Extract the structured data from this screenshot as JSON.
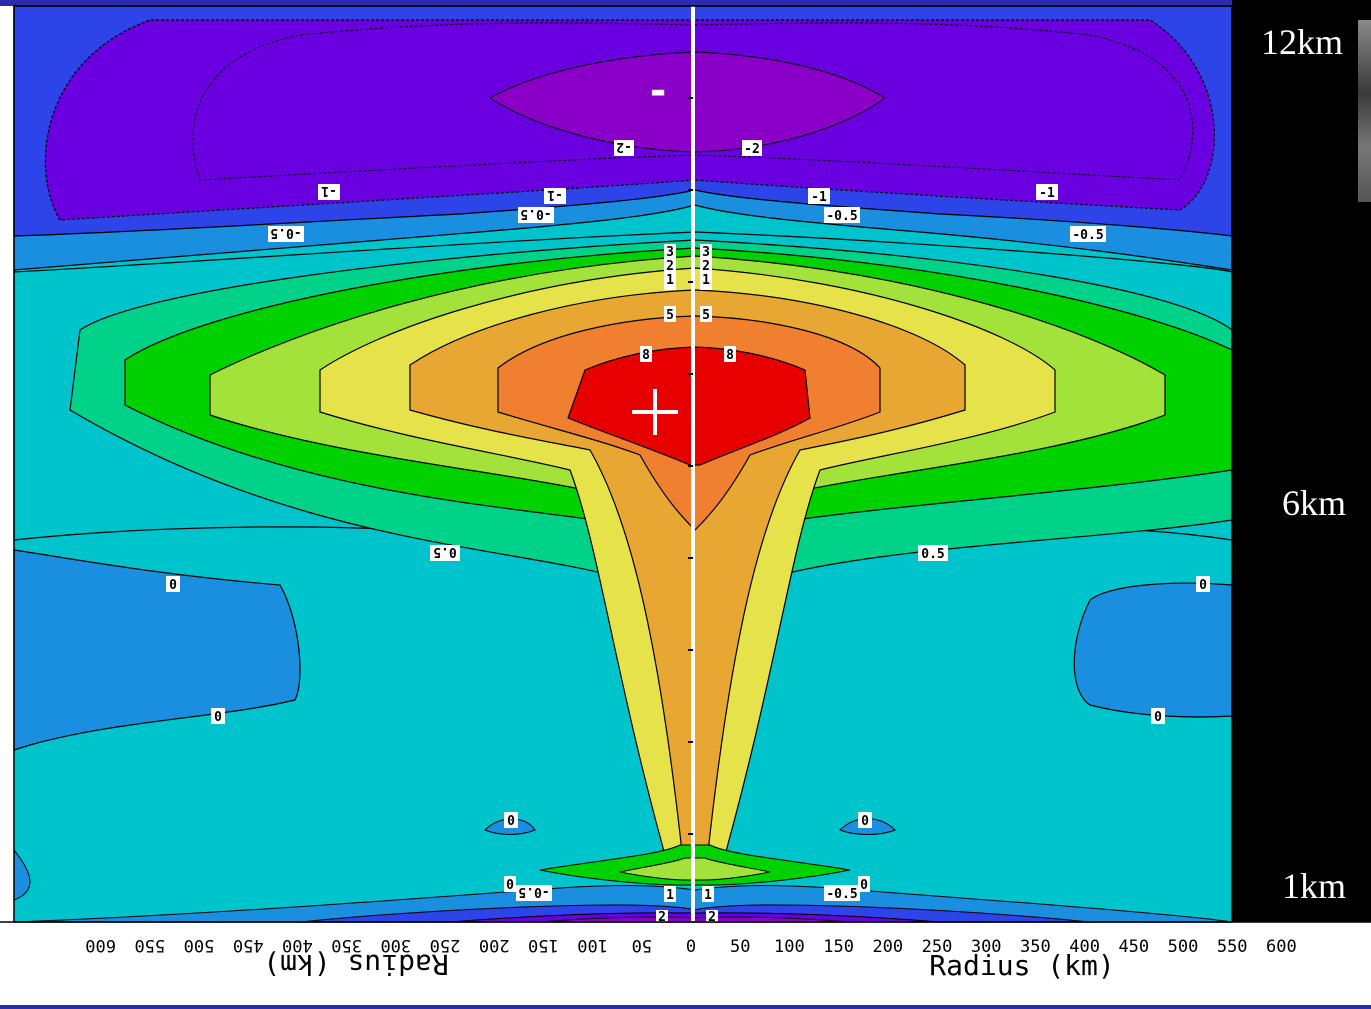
{
  "heights": {
    "top": "12km",
    "mid": "6km",
    "bottom": "1km"
  },
  "markers": {
    "minus": "-",
    "plus": "+"
  },
  "axis": {
    "left_ticks": [
      "600",
      "550",
      "500",
      "450",
      "400",
      "350",
      "300",
      "250",
      "200",
      "150",
      "100",
      "50",
      "0"
    ],
    "right_ticks": [
      "50",
      "100",
      "150",
      "200",
      "250",
      "300",
      "350",
      "400",
      "450",
      "500",
      "550",
      "600"
    ],
    "xlabel_left": "Radius (km)",
    "xlabel_right": "Radius (km)"
  },
  "contour_labels": {
    "right_top": [
      "-2",
      "-1",
      "-1",
      "-0.5",
      "-0.5"
    ],
    "left_top": [
      "-2",
      "-1",
      "-1",
      "-0.5",
      "-0.5"
    ],
    "center": [
      "3",
      "2",
      "1",
      "5",
      "8"
    ],
    "mid": [
      "0.5",
      "0",
      "0",
      "0"
    ],
    "bottom": [
      "0",
      "-0.5",
      "1",
      "2"
    ]
  },
  "colors": {
    "purple_dark": "#8b00c8",
    "violet": "#6a00e0",
    "blue_dark": "#2c44e8",
    "blue": "#1a8fe0",
    "cyan": "#00c4cc",
    "green_light": "#00d28a",
    "green": "#00d200",
    "yellow_green": "#a2e23a",
    "yellow": "#e6e24a",
    "orange_light": "#e8a632",
    "orange": "#f08030",
    "red": "#e80000"
  }
}
